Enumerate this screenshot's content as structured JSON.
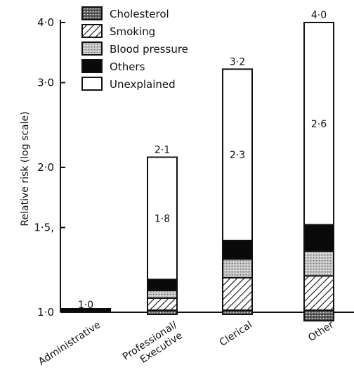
{
  "chart_data": {
    "type": "bar",
    "stacked": true,
    "yscale": "log",
    "ylabel": "Relative risk (log scale)",
    "ylim": [
      1.0,
      4.0
    ],
    "yticks": [
      {
        "value": 1.0,
        "label": "1·0"
      },
      {
        "value": 1.5,
        "label": "1·5,"
      },
      {
        "value": 2.0,
        "label": "2·0"
      },
      {
        "value": 3.0,
        "label": "3·0"
      },
      {
        "value": 4.0,
        "label": "4·0"
      }
    ],
    "legend_position": "top-left",
    "legend": [
      {
        "key": "cholesterol",
        "label": "Cholesterol",
        "pattern": "stipple-dark"
      },
      {
        "key": "smoking",
        "label": "Smoking",
        "pattern": "hatch"
      },
      {
        "key": "blood_pressure",
        "label": "Blood pressure",
        "pattern": "stipple-light"
      },
      {
        "key": "others",
        "label": "Others",
        "pattern": "solid-black"
      },
      {
        "key": "unexplained",
        "label": "Unexplained",
        "pattern": "white"
      }
    ],
    "categories": [
      {
        "name": "Administrative",
        "total": 1.0,
        "total_label": "1·0",
        "segments": []
      },
      {
        "name": "Professional/ Executive",
        "total": 2.1,
        "total_label": "2·1",
        "unexplained_label": "1·8",
        "segments": [
          {
            "key": "cholesterol",
            "from": 0.99,
            "to": 1.01
          },
          {
            "key": "smoking",
            "from": 1.01,
            "to": 1.07
          },
          {
            "key": "blood_pressure",
            "from": 1.07,
            "to": 1.11
          },
          {
            "key": "others",
            "from": 1.11,
            "to": 1.17
          },
          {
            "key": "unexplained",
            "from": 1.17,
            "to": 2.1
          }
        ]
      },
      {
        "name": "Clerical",
        "total": 3.2,
        "total_label": "3·2",
        "unexplained_label": "2·3",
        "segments": [
          {
            "key": "cholesterol",
            "from": 0.99,
            "to": 1.01
          },
          {
            "key": "smoking",
            "from": 1.01,
            "to": 1.18
          },
          {
            "key": "blood_pressure",
            "from": 1.18,
            "to": 1.29
          },
          {
            "key": "others",
            "from": 1.29,
            "to": 1.41
          },
          {
            "key": "unexplained",
            "from": 1.41,
            "to": 3.2
          }
        ]
      },
      {
        "name": "Other",
        "total": 4.0,
        "total_label": "4·0",
        "unexplained_label": "2·6",
        "segments": [
          {
            "key": "cholesterol",
            "from": 0.96,
            "to": 1.01
          },
          {
            "key": "smoking",
            "from": 1.01,
            "to": 1.19
          },
          {
            "key": "blood_pressure",
            "from": 1.19,
            "to": 1.34
          },
          {
            "key": "others",
            "from": 1.34,
            "to": 1.52
          },
          {
            "key": "unexplained",
            "from": 1.52,
            "to": 4.0
          }
        ]
      }
    ]
  }
}
